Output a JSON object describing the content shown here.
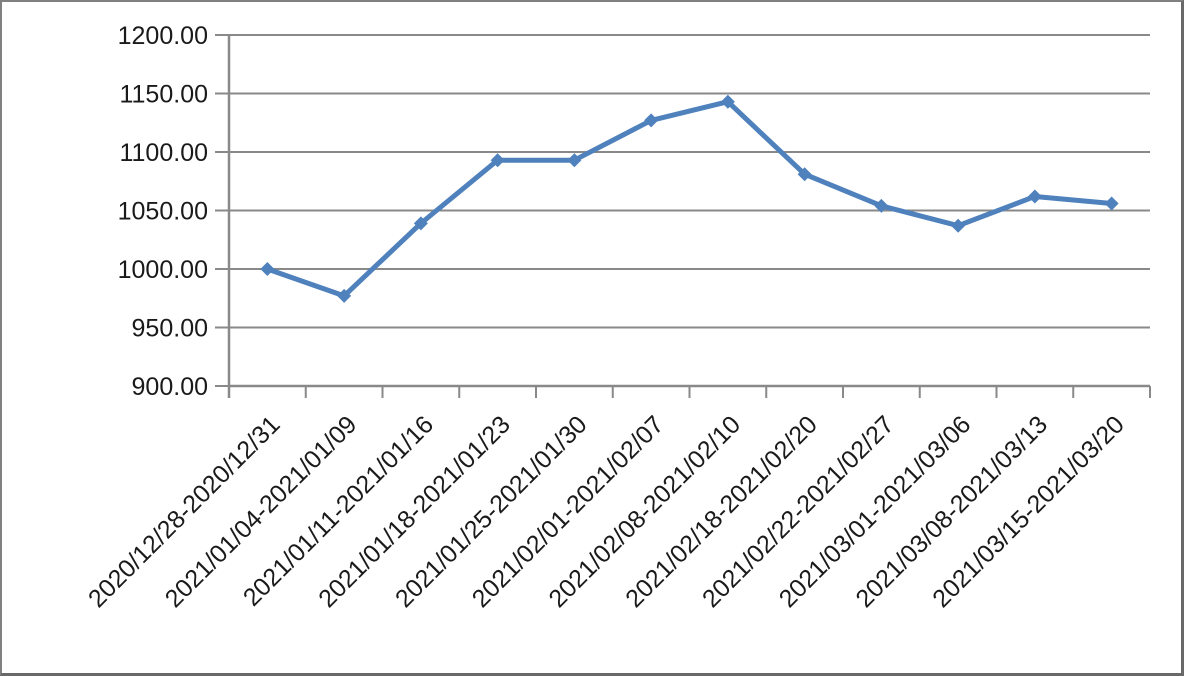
{
  "chart_data": {
    "type": "line",
    "title": "",
    "xlabel": "",
    "ylabel": "",
    "categories": [
      "2020/12/28-2020/12/31",
      "2021/01/04-2021/01/09",
      "2021/01/11-2021/01/16",
      "2021/01/18-2021/01/23",
      "2021/01/25-2021/01/30",
      "2021/02/01-2021/02/07",
      "2021/02/08-2021/02/10",
      "2021/02/18-2021/02/20",
      "2021/02/22-2021/02/27",
      "2021/03/01-2021/03/06",
      "2021/03/08-2021/03/13",
      "2021/03/15-2021/03/20"
    ],
    "values": [
      1000,
      977,
      1039,
      1093,
      1093,
      1127,
      1143,
      1081,
      1054,
      1037,
      1062,
      1056
    ],
    "ylim": [
      900,
      1200
    ],
    "ytick_step": 50,
    "y_tick_labels": [
      "1200.00",
      "1150.00",
      "1100.00",
      "1050.00",
      "1000.00",
      "950.00",
      "900.00"
    ],
    "x_label_rotation_deg": -45,
    "grid": true,
    "legend_position": "none",
    "marker": "diamond",
    "colors": {
      "series_line": "#4F81BD",
      "marker_fill": "#4F81BD",
      "gridline": "#898989",
      "axis_line": "#898989",
      "tick_mark": "#898989",
      "axis_text": "#1a1a1a",
      "frame_border": "#696969",
      "background": "#ffffff"
    }
  }
}
